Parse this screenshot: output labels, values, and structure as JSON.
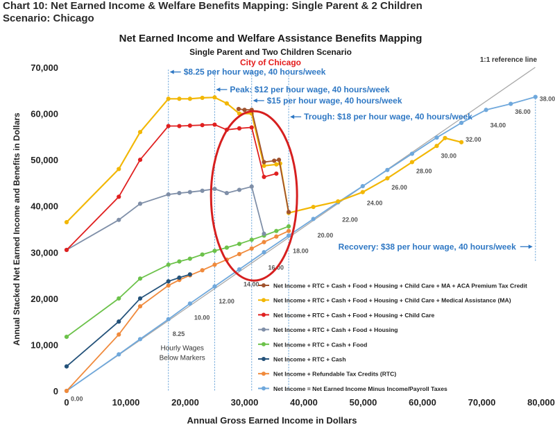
{
  "header": {
    "line1": "Chart 10: Net Earned Income & Welfare Benefits Mapping:  Single Parent & 2 Children",
    "line2": "Scenario: Chicago"
  },
  "chart_data": {
    "type": "line",
    "title": "Net Earned Income and Welfare Assistance Benefits Mapping",
    "subtitle": "Single Parent and Two Children Scenario",
    "city": "City of Chicago",
    "xlabel": "Annual Gross Earned Income in Dollars",
    "ylabel": "Annual Stacked Net Earned Income and Benefits in Dollars",
    "xlim": [
      0,
      80000
    ],
    "ylim": [
      0,
      70000
    ],
    "x_ticks": [
      0,
      10000,
      20000,
      30000,
      40000,
      50000,
      60000,
      70000,
      80000
    ],
    "x_tick_labels": [
      "0",
      "10,000",
      "20,000",
      "30,000",
      "40,000",
      "50,000",
      "60,000",
      "70,000",
      "80,000"
    ],
    "y_ticks": [
      0,
      10000,
      20000,
      30000,
      40000,
      50000,
      60000,
      70000
    ],
    "y_tick_labels": [
      "0",
      "10,000",
      "20,000",
      "30,000",
      "40,000",
      "50,000",
      "60,000",
      "70,000"
    ],
    "reference_line_label": "1:1 reference line",
    "reference_line": [
      [
        0,
        0
      ],
      [
        79000,
        70000
      ]
    ],
    "annotations": [
      {
        "text": "$8.25 per hour wage, 40 hours/week",
        "arrow": "left",
        "x": 17160,
        "y": 69000
      },
      {
        "text": "Peak: $12 per hour wage, 40 hours/week",
        "arrow": "left",
        "x": 24960,
        "y": 65200
      },
      {
        "text": "$15 per hour wage, 40 hours/week",
        "arrow": "left",
        "x": 31200,
        "y": 62800
      },
      {
        "text": "Trough: $18 per hour wage, 40 hours/week",
        "arrow": "left",
        "x": 37440,
        "y": 59300
      },
      {
        "text": "Recovery: $38 per hour wage, 40 hours/week",
        "arrow": "right",
        "x": 79040,
        "y": 31200
      }
    ],
    "markers_note": "Hourly Wages Below Markers",
    "wage_markers": [
      {
        "label": "0.00",
        "x": 0,
        "y": -1600
      },
      {
        "label": "8.25",
        "x": 17160,
        "y": 12500
      },
      {
        "label": "10.00",
        "x": 20800,
        "y": 16000
      },
      {
        "label": "12.00",
        "x": 24960,
        "y": 19500
      },
      {
        "label": "14.00",
        "x": 29120,
        "y": 23200
      },
      {
        "label": "16.00",
        "x": 33280,
        "y": 26800
      },
      {
        "label": "18.00",
        "x": 37440,
        "y": 30400
      },
      {
        "label": "20.00",
        "x": 41600,
        "y": 33800
      },
      {
        "label": "22.00",
        "x": 45760,
        "y": 37200
      },
      {
        "label": "24.00",
        "x": 49920,
        "y": 40800
      },
      {
        "label": "26.00",
        "x": 54080,
        "y": 44200
      },
      {
        "label": "28.00",
        "x": 58240,
        "y": 47700
      },
      {
        "label": "30.00",
        "x": 62400,
        "y": 51000
      },
      {
        "label": "32.00",
        "x": 66560,
        "y": 54500
      },
      {
        "label": "34.00",
        "x": 70720,
        "y": 57600
      },
      {
        "label": "36.00",
        "x": 74880,
        "y": 60500
      },
      {
        "label": "38.00",
        "x": 79040,
        "y": 63300
      }
    ],
    "series": [
      {
        "name": "Net Income + RTC + Cash + Food + Housing + Child Care + MA + ACA Premium Tax Credit",
        "color": "#a0522d",
        "points": [
          [
            29000,
            61000
          ],
          [
            30000,
            60800
          ],
          [
            31200,
            60800
          ],
          [
            33280,
            49500
          ],
          [
            35000,
            49800
          ],
          [
            35800,
            50000
          ],
          [
            37440,
            38700
          ]
        ]
      },
      {
        "name": "Net Income + RTC + Cash + Food + Housing + Child Care + Medical Assistance (MA)",
        "color": "#f2b705",
        "points": [
          [
            0,
            36500
          ],
          [
            8800,
            48000
          ],
          [
            12400,
            56000
          ],
          [
            17160,
            63200
          ],
          [
            19000,
            63200
          ],
          [
            20800,
            63200
          ],
          [
            22880,
            63400
          ],
          [
            24960,
            63500
          ],
          [
            27000,
            62200
          ],
          [
            29120,
            60000
          ],
          [
            31200,
            60000
          ],
          [
            33280,
            48700
          ],
          [
            35360,
            49000
          ],
          [
            36000,
            49200
          ],
          [
            37440,
            38500
          ],
          [
            41600,
            39800
          ],
          [
            45760,
            41000
          ],
          [
            49920,
            43000
          ],
          [
            54080,
            46000
          ],
          [
            58240,
            49500
          ],
          [
            62400,
            53000
          ],
          [
            63800,
            54700
          ],
          [
            66560,
            53800
          ]
        ]
      },
      {
        "name": "Net Income + RTC + Cash + Food + Housing + Child Care",
        "color": "#e02020",
        "points": [
          [
            0,
            30500
          ],
          [
            8800,
            42000
          ],
          [
            12400,
            50000
          ],
          [
            17160,
            57300
          ],
          [
            19000,
            57300
          ],
          [
            20800,
            57400
          ],
          [
            22880,
            57500
          ],
          [
            24960,
            57600
          ],
          [
            27000,
            56500
          ],
          [
            29120,
            56800
          ],
          [
            31200,
            57000
          ],
          [
            33280,
            46300
          ],
          [
            35360,
            47000
          ]
        ]
      },
      {
        "name": "Net Income + RTC + Cash + Food + Housing",
        "color": "#7f8fa8",
        "points": [
          [
            0,
            30500
          ],
          [
            8800,
            37000
          ],
          [
            12400,
            40500
          ],
          [
            17160,
            42500
          ],
          [
            19000,
            42800
          ],
          [
            20800,
            43000
          ],
          [
            22880,
            43300
          ],
          [
            24960,
            43700
          ],
          [
            27000,
            42800
          ],
          [
            29120,
            43500
          ],
          [
            31200,
            44200
          ],
          [
            33280,
            34000
          ]
        ]
      },
      {
        "name": "Net Income + RTC + Cash + Food",
        "color": "#6cc24a",
        "points": [
          [
            0,
            11700
          ],
          [
            8800,
            20000
          ],
          [
            12400,
            24300
          ],
          [
            17160,
            27300
          ],
          [
            19000,
            28000
          ],
          [
            20800,
            28600
          ],
          [
            22880,
            29500
          ],
          [
            24960,
            30300
          ],
          [
            27000,
            31000
          ],
          [
            29120,
            31800
          ],
          [
            31200,
            32700
          ],
          [
            33280,
            33600
          ],
          [
            35360,
            34600
          ],
          [
            37440,
            35600
          ]
        ]
      },
      {
        "name": "Net Income + RTC + Cash",
        "color": "#24527a",
        "points": [
          [
            0,
            5300
          ],
          [
            8800,
            15000
          ],
          [
            12400,
            20000
          ],
          [
            17160,
            23700
          ],
          [
            19000,
            24500
          ],
          [
            20800,
            25200
          ]
        ]
      },
      {
        "name": "Net Income + Refundable Tax Credits (RTC)",
        "color": "#f08a3c",
        "points": [
          [
            0,
            0
          ],
          [
            8800,
            12200
          ],
          [
            12400,
            18300
          ],
          [
            17160,
            22800
          ],
          [
            19000,
            24000
          ],
          [
            20800,
            25000
          ],
          [
            22880,
            26100
          ],
          [
            24960,
            27300
          ],
          [
            27000,
            28400
          ],
          [
            29120,
            29600
          ],
          [
            31200,
            30800
          ],
          [
            33280,
            32200
          ],
          [
            35360,
            33400
          ],
          [
            37440,
            34600
          ]
        ]
      },
      {
        "name": "Net Income = Net Earned Income Minus Income/Payroll Taxes",
        "color": "#6fa8dc",
        "points": [
          [
            0,
            0
          ],
          [
            8800,
            7900
          ],
          [
            12400,
            11200
          ],
          [
            17160,
            15500
          ],
          [
            20800,
            18900
          ],
          [
            24960,
            22600
          ],
          [
            29120,
            26300
          ],
          [
            33280,
            30000
          ],
          [
            37440,
            33600
          ],
          [
            41600,
            37200
          ],
          [
            45760,
            40800
          ],
          [
            49920,
            44300
          ],
          [
            54080,
            47800
          ],
          [
            58240,
            51300
          ],
          [
            62400,
            54800
          ],
          [
            66560,
            58000
          ],
          [
            70720,
            60800
          ],
          [
            74880,
            62100
          ],
          [
            79040,
            63600
          ]
        ]
      }
    ],
    "legend_position": "lower-right",
    "grid": false
  }
}
